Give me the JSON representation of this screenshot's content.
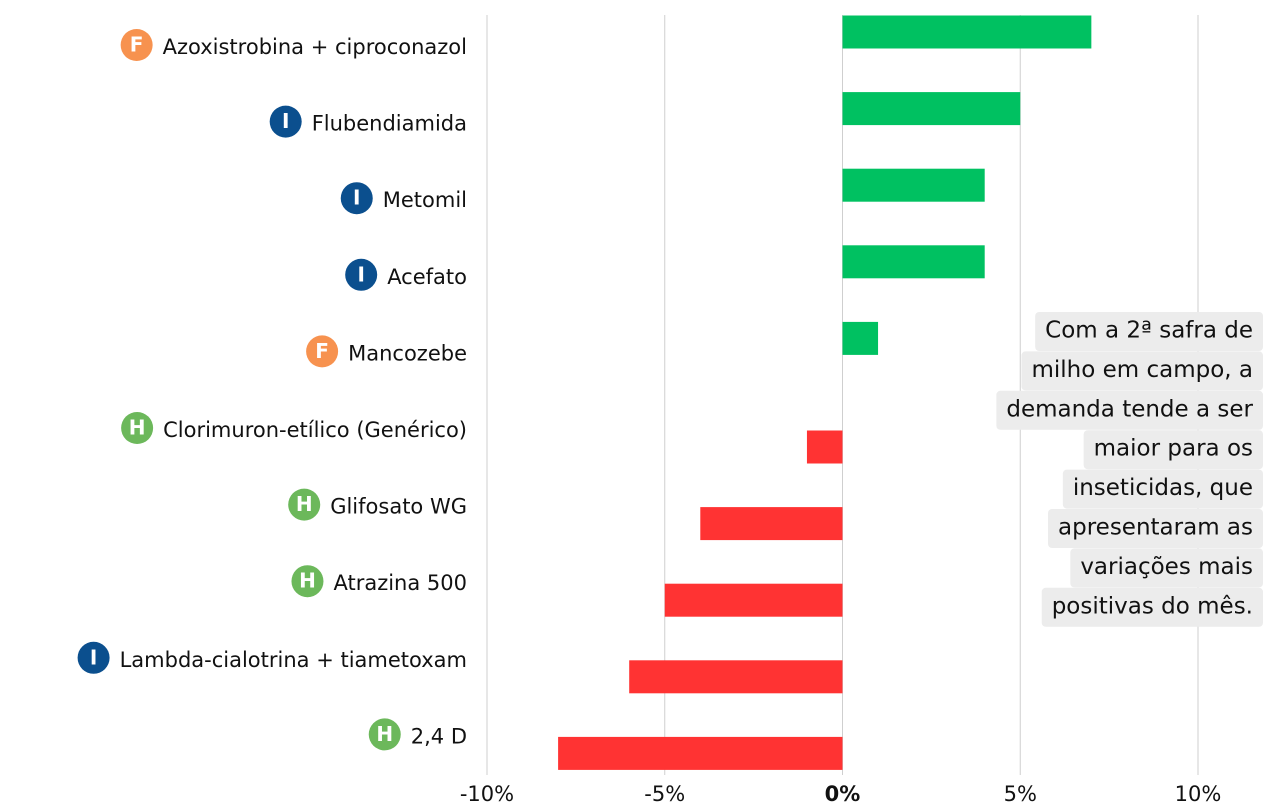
{
  "chart_data": {
    "type": "barh",
    "categories": [
      "Azoxistrobina + ciproconazol",
      "Flubendiamida",
      "Metomil",
      "Acefato",
      "Mancozebe",
      "Clorimuron-etílico (Genérico)",
      "Glifosato WG",
      "Atrazina 500",
      "Lambda-cialotrina + tiametoxam",
      "2,4 D"
    ],
    "badges": [
      "F",
      "I",
      "I",
      "I",
      "F",
      "H",
      "H",
      "H",
      "I",
      "H"
    ],
    "badge_colors": {
      "F": "#f7924f",
      "I": "#0b4f8e",
      "H": "#6cb85b"
    },
    "values": [
      7,
      5,
      4,
      4,
      1,
      -1,
      -4,
      -5,
      -6,
      -8
    ],
    "positive_color": "#00c161",
    "negative_color": "#ff3333",
    "xlim": [
      -10,
      10
    ],
    "xticks": [
      {
        "value": -10,
        "label": "-10%"
      },
      {
        "value": -5,
        "label": "-5%"
      },
      {
        "value": 0,
        "label": "0%"
      },
      {
        "value": 5,
        "label": "5%"
      },
      {
        "value": 10,
        "label": "10%"
      }
    ],
    "grid": true,
    "annotation": [
      "Com a 2ª safra de",
      "milho em campo, a",
      "demanda tende a ser",
      "maior para os",
      "inseticidas, que",
      "apresentaram as",
      "variações mais",
      "positivas do mês."
    ]
  }
}
